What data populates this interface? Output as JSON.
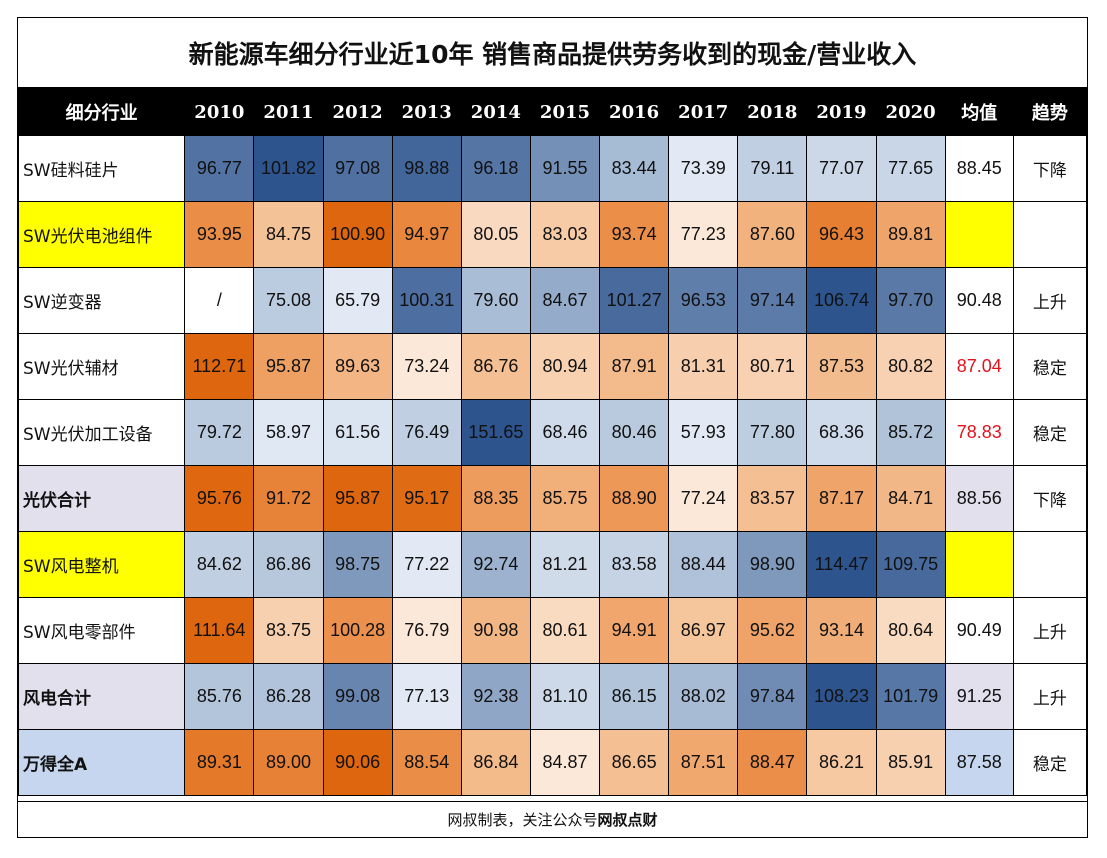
{
  "title": "新能源车细分行业近10年 销售商品提供劳务收到的现金/营业收入",
  "footer": {
    "prefix": "网叔制表，关注公众号",
    "brand": "网叔点财"
  },
  "colors": {
    "row_highlight_yellow": "#ffff00",
    "row_highlight_lavender": "#e3e0ee",
    "row_highlight_blue": "#c6d6ee",
    "red_text": "#e0141e",
    "header_bg": "#000000"
  },
  "chart_data": {
    "type": "table",
    "title": "新能源车细分行业近10年 销售商品提供劳务收到的现金/营业收入",
    "columns": [
      "细分行业",
      "2010",
      "2011",
      "2012",
      "2013",
      "2014",
      "2015",
      "2016",
      "2017",
      "2018",
      "2019",
      "2020",
      "均值",
      "趋势"
    ],
    "years": [
      "2010",
      "2011",
      "2012",
      "2013",
      "2014",
      "2015",
      "2016",
      "2017",
      "2018",
      "2019",
      "2020"
    ],
    "rows": [
      {
        "label": "SW硅料硅片",
        "style": "plain",
        "scale": "blue",
        "values": [
          "96.77",
          "101.82",
          "97.08",
          "98.88",
          "96.18",
          "91.55",
          "83.44",
          "73.39",
          "79.11",
          "77.07",
          "77.65"
        ],
        "avg": "88.45",
        "avg_red": false,
        "trend": "下降"
      },
      {
        "label": "SW光伏电池组件",
        "style": "yellow",
        "scale": "orange",
        "values": [
          "93.95",
          "84.75",
          "100.90",
          "94.97",
          "80.05",
          "83.03",
          "93.74",
          "77.23",
          "87.60",
          "96.43",
          "89.81"
        ],
        "avg": "",
        "avg_red": false,
        "trend": ""
      },
      {
        "label": "SW逆变器",
        "style": "plain",
        "scale": "blue",
        "values": [
          "/",
          "75.08",
          "65.79",
          "100.31",
          "79.60",
          "84.67",
          "101.27",
          "96.53",
          "97.14",
          "106.74",
          "97.70"
        ],
        "avg": "90.48",
        "avg_red": false,
        "trend": "上升"
      },
      {
        "label": "SW光伏辅材",
        "style": "plain",
        "scale": "orange",
        "values": [
          "112.71",
          "95.87",
          "89.63",
          "73.24",
          "86.76",
          "80.94",
          "87.91",
          "81.31",
          "80.71",
          "87.53",
          "80.82"
        ],
        "avg": "87.04",
        "avg_red": true,
        "trend": "稳定"
      },
      {
        "label": "SW光伏加工设备",
        "style": "plain",
        "scale": "blue",
        "values": [
          "79.72",
          "58.97",
          "61.56",
          "76.49",
          "151.65",
          "68.46",
          "80.46",
          "57.93",
          "77.80",
          "68.36",
          "85.72"
        ],
        "avg": "78.83",
        "avg_red": true,
        "trend": "稳定"
      },
      {
        "label": "光伏合计",
        "style": "lavender",
        "scale": "orange",
        "values": [
          "95.76",
          "91.72",
          "95.87",
          "95.17",
          "88.35",
          "85.75",
          "88.90",
          "77.24",
          "83.57",
          "87.17",
          "84.71"
        ],
        "avg": "88.56",
        "avg_red": false,
        "trend": "下降"
      },
      {
        "label": "SW风电整机",
        "style": "yellow",
        "scale": "blue",
        "values": [
          "84.62",
          "86.86",
          "98.75",
          "77.22",
          "92.74",
          "81.21",
          "83.58",
          "88.44",
          "98.90",
          "114.47",
          "109.75"
        ],
        "avg": "",
        "avg_red": false,
        "trend": ""
      },
      {
        "label": "SW风电零部件",
        "style": "plain",
        "scale": "orange",
        "values": [
          "111.64",
          "83.75",
          "100.28",
          "76.79",
          "90.98",
          "80.61",
          "94.91",
          "86.97",
          "95.62",
          "93.14",
          "80.64"
        ],
        "avg": "90.49",
        "avg_red": false,
        "trend": "上升"
      },
      {
        "label": "风电合计",
        "style": "lavender",
        "scale": "blue",
        "values": [
          "85.76",
          "86.28",
          "99.08",
          "77.13",
          "92.38",
          "81.10",
          "86.15",
          "88.02",
          "97.84",
          "108.23",
          "101.79"
        ],
        "avg": "91.25",
        "avg_red": false,
        "trend": "上升"
      },
      {
        "label": "万得全A",
        "style": "blue",
        "scale": "orange",
        "values": [
          "89.31",
          "89.00",
          "90.06",
          "88.54",
          "86.84",
          "84.87",
          "86.65",
          "87.51",
          "88.47",
          "86.21",
          "85.91"
        ],
        "avg": "87.58",
        "avg_red": false,
        "trend": "稳定"
      }
    ]
  }
}
